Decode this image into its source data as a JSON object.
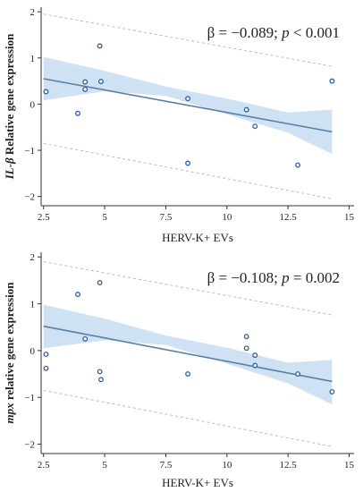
{
  "colors": {
    "band": "#cfe2f3",
    "line": "#5b7fa6",
    "points": "#2b5ea8",
    "prediction": "#bbbbbb",
    "axis": "#333333"
  },
  "chart_data": [
    {
      "type": "scatter",
      "title": "",
      "xlabel": "HERV-K+ EVs",
      "ylabel_italic": "IL-β",
      "ylabel_rest": " Relative gene expression",
      "annotation": {
        "prefix": "β = −0.089; ",
        "p_symbol": "p",
        "suffix": " < 0.001"
      },
      "xlim": [
        2.4,
        15.2
      ],
      "ylim": [
        -2.2,
        2.1
      ],
      "xticks": [
        2.5,
        5,
        7.5,
        10,
        12.5,
        15
      ],
      "xtick_labels": [
        "2.5",
        "5",
        "7.5",
        "10",
        "12.5",
        "15"
      ],
      "yticks": [
        -2,
        -1,
        0,
        1,
        2
      ],
      "ytick_labels": [
        "−2",
        "−1",
        "0",
        "1",
        "2"
      ],
      "points": [
        {
          "x": 2.6,
          "y": 0.27
        },
        {
          "x": 3.9,
          "y": -0.2
        },
        {
          "x": 4.2,
          "y": 0.48
        },
        {
          "x": 4.2,
          "y": 0.32
        },
        {
          "x": 4.8,
          "y": 1.26
        },
        {
          "x": 4.85,
          "y": 0.49
        },
        {
          "x": 8.4,
          "y": 0.12
        },
        {
          "x": 8.4,
          "y": -1.28
        },
        {
          "x": 10.8,
          "y": -0.12
        },
        {
          "x": 11.15,
          "y": -0.48
        },
        {
          "x": 12.9,
          "y": -1.32
        },
        {
          "x": 14.3,
          "y": 0.5
        }
      ],
      "fit_line": {
        "x": [
          2.5,
          14.3
        ],
        "y": [
          0.55,
          -0.6
        ]
      },
      "ci_band": {
        "x": [
          2.5,
          5,
          7.5,
          10,
          12.5,
          14.3
        ],
        "lower": [
          0.08,
          0.28,
          0.18,
          -0.22,
          -0.62,
          -1.08
        ],
        "upper": [
          1.02,
          0.72,
          0.38,
          0.12,
          -0.18,
          -0.12
        ]
      },
      "prediction_band": {
        "x": [
          2.5,
          14.3
        ],
        "lower": [
          -0.85,
          -2.05
        ],
        "upper": [
          1.95,
          0.82
        ]
      }
    },
    {
      "type": "scatter",
      "title": "",
      "xlabel": "HERV-K+ EVs",
      "ylabel_italic": "mpx",
      "ylabel_rest": " relative gene expression",
      "annotation": {
        "prefix": "β = −0.108; ",
        "p_symbol": "p",
        "suffix": " = 0.002"
      },
      "xlim": [
        2.4,
        15.2
      ],
      "ylim": [
        -2.2,
        2.1
      ],
      "xticks": [
        2.5,
        5,
        7.5,
        10,
        12.5,
        15
      ],
      "xtick_labels": [
        "2.5",
        "5",
        "7.5",
        "10",
        "12.5",
        "15"
      ],
      "yticks": [
        -2,
        -1,
        0,
        1,
        2
      ],
      "ytick_labels": [
        "−2",
        "−1",
        "0",
        "1",
        "2"
      ],
      "points": [
        {
          "x": 2.6,
          "y": -0.08
        },
        {
          "x": 2.6,
          "y": -0.38
        },
        {
          "x": 3.9,
          "y": 1.2
        },
        {
          "x": 4.2,
          "y": 0.25
        },
        {
          "x": 4.8,
          "y": 1.45
        },
        {
          "x": 4.8,
          "y": -0.45
        },
        {
          "x": 4.85,
          "y": -0.62
        },
        {
          "x": 8.4,
          "y": -0.5
        },
        {
          "x": 10.8,
          "y": 0.3
        },
        {
          "x": 10.8,
          "y": 0.05
        },
        {
          "x": 11.15,
          "y": -0.1
        },
        {
          "x": 11.15,
          "y": -0.32
        },
        {
          "x": 12.9,
          "y": -0.5
        },
        {
          "x": 14.3,
          "y": -0.88
        }
      ],
      "fit_line": {
        "x": [
          2.5,
          14.3
        ],
        "y": [
          0.52,
          -0.66
        ]
      },
      "ci_band": {
        "x": [
          2.5,
          5,
          7.5,
          10,
          12.5,
          14.3
        ],
        "lower": [
          0.05,
          0.22,
          0.12,
          -0.28,
          -0.7,
          -1.15
        ],
        "upper": [
          0.98,
          0.68,
          0.32,
          0.06,
          -0.26,
          -0.2
        ]
      },
      "prediction_band": {
        "x": [
          2.5,
          14.3
        ],
        "lower": [
          -0.85,
          -2.05
        ],
        "upper": [
          1.9,
          0.76
        ]
      }
    }
  ]
}
